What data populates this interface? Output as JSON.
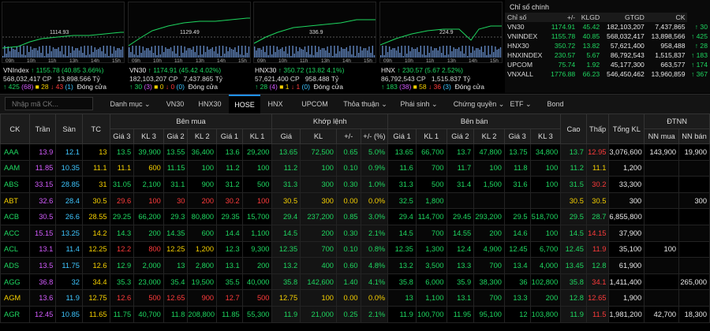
{
  "indices": [
    {
      "name": "VNIndex",
      "value": "1155.78",
      "change": "40.85",
      "pct": "3.66%",
      "dir": "up",
      "vol": "568,032,417 CP",
      "val": "13,898.566 Tỷ",
      "status": "Đóng cửa",
      "adv": "425",
      "adv_ce": "68",
      "ref": "28",
      "dec": "43",
      "dec_fl": "1",
      "mid": "1129.49",
      "mid_label": "1114.93",
      "times": [
        "09h",
        "10h",
        "11h",
        "13h",
        "14h",
        "15h"
      ]
    },
    {
      "name": "VN30",
      "value": "1174.91",
      "change": "45.42",
      "pct": "4.02%",
      "dir": "up",
      "vol": "182,103,207 CP",
      "val": "7,437.865 Tỷ",
      "status": "Đóng cửa",
      "adv": "30",
      "adv_ce": "3",
      "ref": "0",
      "dec": "0",
      "dec_fl": "0",
      "mid_label": "1129.49",
      "times": [
        "09h",
        "10h",
        "11h",
        "13h",
        "14h",
        "15h"
      ]
    },
    {
      "name": "HNX30",
      "value": "350.72",
      "change": "13.82",
      "pct": "4.1%",
      "dir": "up",
      "vol": "57,621,400 CP",
      "val": "958.488 Tỷ",
      "status": "Đóng cửa",
      "adv": "28",
      "adv_ce": "4",
      "ref": "1",
      "dec": "1",
      "dec_fl": "0",
      "mid_label": "336.9",
      "times": [
        "09h",
        "10h",
        "11h",
        "13h",
        "14h",
        "15h"
      ]
    },
    {
      "name": "HNX",
      "value": "230.57",
      "change": "5.67",
      "pct": "2.52%",
      "dir": "up",
      "vol": "86,792,543 CP",
      "val": "1,515.837 Tỷ",
      "status": "Đóng cửa",
      "adv": "183",
      "adv_ce": "38",
      "ref": "58",
      "dec": "36",
      "dec_fl": "3",
      "mid_label": "224.9",
      "times": [
        "09h",
        "10h",
        "11h",
        "13h",
        "14h",
        "15h"
      ]
    }
  ],
  "panel": {
    "title": "Chỉ số chính",
    "headers": [
      "Chỉ số",
      "+/-",
      "KLGD",
      "GTGD",
      "CK"
    ],
    "rows": [
      {
        "name": "VN30",
        "val": "1174.91",
        "chg": "45.42",
        "vol": "182,103,207",
        "value": "7,437,865",
        "adv": "30"
      },
      {
        "name": "VNINDEX",
        "val": "1155.78",
        "chg": "40.85",
        "vol": "568,032,417",
        "value": "13,898,566",
        "adv": "425"
      },
      {
        "name": "HNX30",
        "val": "350.72",
        "chg": "13.82",
        "vol": "57,621,400",
        "value": "958,488",
        "adv": "28"
      },
      {
        "name": "HNXINDEX",
        "val": "230.57",
        "chg": "5.67",
        "vol": "86,792,543",
        "value": "1,515,837",
        "adv": "183"
      },
      {
        "name": "UPCOM",
        "val": "75.74",
        "chg": "1.92",
        "vol": "45,177,300",
        "value": "663,577",
        "adv": "174"
      },
      {
        "name": "VNXALL",
        "val": "1776.88",
        "chg": "66.23",
        "vol": "546,450,462",
        "value": "13,960,859",
        "adv": "367"
      }
    ]
  },
  "search": {
    "placeholder": "Nhập mã CK..."
  },
  "tabs": [
    "Danh mục",
    "VN30",
    "HNX30",
    "HOSE",
    "HNX",
    "UPCOM",
    "Thỏa thuận",
    "Phái sinh",
    "Chứng quyền",
    "ETF",
    "Bond"
  ],
  "active_tab": "HOSE",
  "grid": {
    "groups": {
      "ck": "CK",
      "tran": "Trần",
      "san": "Sàn",
      "tc": "TC",
      "buy": "Bên mua",
      "match": "Khớp lệnh",
      "sell": "Bên bán",
      "cao": "Cao",
      "thap": "Thấp",
      "tong": "Tổng KL",
      "dtnn": "ĐTNN"
    },
    "sub": {
      "buy": [
        "Giá 3",
        "KL 3",
        "Giá 2",
        "KL 2",
        "Giá 1",
        "KL 1"
      ],
      "match": [
        "Giá",
        "KL",
        "+/-",
        "+/- (%)"
      ],
      "sell": [
        "Giá 1",
        "KL 1",
        "Giá 2",
        "KL 2",
        "Giá 3",
        "KL 3"
      ],
      "dtnn": [
        "NN mua",
        "NN bán"
      ]
    },
    "rows": [
      [
        "AAA",
        "13.9",
        "12.1",
        "13",
        "13.5",
        "39,900",
        "13.55",
        "36,400",
        "13.6",
        "29,200",
        "13.65",
        "72,500",
        "0.65",
        "5.0%",
        "13.65",
        "66,700",
        "13.7",
        "47,800",
        "13.75",
        "34,800",
        "13.7",
        "12.95",
        "3,076,600",
        "143,900",
        "19,900"
      ],
      [
        "AAM",
        "11.85",
        "10.35",
        "11.1",
        "11.1",
        "600",
        "11.15",
        "100",
        "11.2",
        "100",
        "11.2",
        "100",
        "0.10",
        "0.9%",
        "11.6",
        "700",
        "11.7",
        "100",
        "11.8",
        "100",
        "11.2",
        "11.1",
        "1,200",
        "",
        ""
      ],
      [
        "ABS",
        "33.15",
        "28.85",
        "31",
        "31.05",
        "2,100",
        "31.1",
        "900",
        "31.2",
        "500",
        "31.3",
        "300",
        "0.30",
        "1.0%",
        "31.3",
        "500",
        "31.4",
        "1,500",
        "31.6",
        "100",
        "31.5",
        "30.2",
        "33,300",
        "",
        ""
      ],
      [
        "ABT",
        "32.6",
        "28.4",
        "30.5",
        "29.6",
        "100",
        "30",
        "200",
        "30.2",
        "100",
        "30.5",
        "300",
        "0.00",
        "0.0%",
        "32.5",
        "1,800",
        "",
        "",
        "",
        "",
        "30.5",
        "30.5",
        "300",
        "",
        "300"
      ],
      [
        "ACB",
        "30.5",
        "26.6",
        "28.55",
        "29.25",
        "66,200",
        "29.3",
        "80,800",
        "29.35",
        "15,700",
        "29.4",
        "237,200",
        "0.85",
        "3.0%",
        "29.4",
        "114,700",
        "29.45",
        "293,200",
        "29.5",
        "518,700",
        "29.5",
        "28.7",
        "6,855,800",
        "",
        ""
      ],
      [
        "ACC",
        "15.15",
        "13.25",
        "14.2",
        "14.3",
        "200",
        "14.35",
        "600",
        "14.4",
        "1,100",
        "14.5",
        "200",
        "0.30",
        "2.1%",
        "14.5",
        "700",
        "14.55",
        "200",
        "14.6",
        "100",
        "14.5",
        "14.15",
        "37,900",
        "",
        ""
      ],
      [
        "ACL",
        "13.1",
        "11.4",
        "12.25",
        "12.2",
        "800",
        "12.25",
        "1,200",
        "12.3",
        "9,300",
        "12.35",
        "700",
        "0.10",
        "0.8%",
        "12.35",
        "1,300",
        "12.4",
        "4,900",
        "12.45",
        "6,700",
        "12.45",
        "11.9",
        "35,100",
        "100",
        ""
      ],
      [
        "ADS",
        "13.5",
        "11.75",
        "12.6",
        "12.9",
        "2,000",
        "13",
        "2,800",
        "13.1",
        "200",
        "13.2",
        "400",
        "0.60",
        "4.8%",
        "13.2",
        "3,500",
        "13.3",
        "700",
        "13.4",
        "4,000",
        "13.45",
        "12.8",
        "61,900",
        "",
        ""
      ],
      [
        "AGG",
        "36.8",
        "32",
        "34.4",
        "35.3",
        "23,000",
        "35.4",
        "19,500",
        "35.5",
        "40,000",
        "35.8",
        "142,600",
        "1.40",
        "4.1%",
        "35.8",
        "6,000",
        "35.9",
        "38,300",
        "36",
        "102,800",
        "35.8",
        "34.1",
        "1,411,400",
        "",
        "265,000"
      ],
      [
        "AGM",
        "13.6",
        "11.9",
        "12.75",
        "12.6",
        "500",
        "12.65",
        "900",
        "12.7",
        "500",
        "12.75",
        "100",
        "0.00",
        "0.0%",
        "13",
        "1,100",
        "13.1",
        "700",
        "13.3",
        "200",
        "12.8",
        "12.65",
        "1,900",
        "",
        ""
      ],
      [
        "AGR",
        "12.45",
        "10.85",
        "11.65",
        "11.75",
        "40,700",
        "11.8",
        "208,800",
        "11.85",
        "55,300",
        "11.9",
        "21,000",
        "0.25",
        "2.1%",
        "11.9",
        "100,700",
        "11.95",
        "95,100",
        "12",
        "103,800",
        "11.9",
        "11.5",
        "1,981,200",
        "42,700",
        "18,300"
      ]
    ]
  },
  "colors": {
    "up": "#1ed760",
    "down": "#ff3b3b",
    "ref": "#f5d000",
    "ceil": "#d45cff",
    "floor": "#3ec6ff"
  }
}
